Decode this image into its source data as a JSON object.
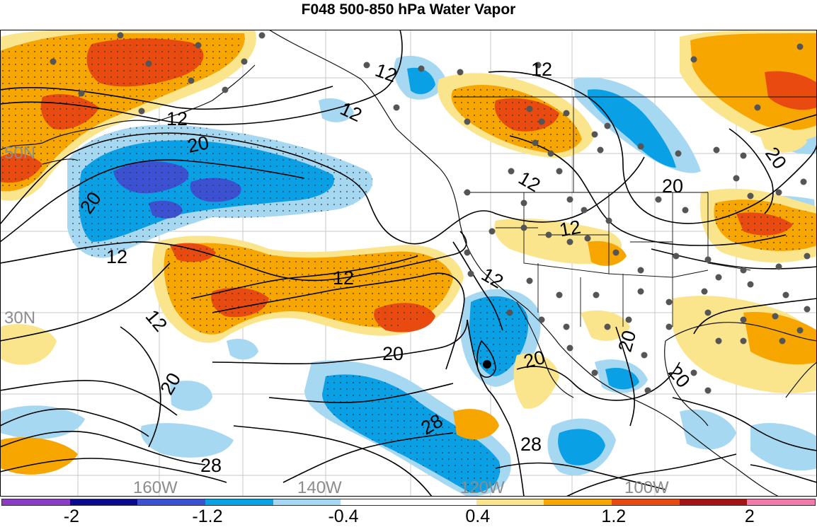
{
  "title": "F048 500-850 hPa Water Vapor",
  "colors": {
    "ocean": "#ffffff",
    "contour": "#000000",
    "station": "#555555",
    "graticule": "#c8c8c8"
  },
  "colorbar": {
    "colors": [
      "#8a3cc8",
      "#0a0a8c",
      "#3c50d2",
      "#0aa0e6",
      "#a6d8f2",
      "#ffffff",
      "#ffffff",
      "#fbe58c",
      "#f7a600",
      "#e84a10",
      "#a51414",
      "#f07aaa"
    ],
    "labels": [
      {
        "text": "-2",
        "pos": 0.086
      },
      {
        "text": "-1.2",
        "pos": 0.253
      },
      {
        "text": "-0.4",
        "pos": 0.42
      },
      {
        "text": "0.4",
        "pos": 0.585
      },
      {
        "text": "1.2",
        "pos": 0.752
      },
      {
        "text": "2",
        "pos": 0.919
      }
    ]
  },
  "longitude_labels": [
    "160W",
    "140W",
    "120W",
    "100W"
  ],
  "latitude_labels": [
    "50N",
    "30N"
  ],
  "contour_labels": [
    "12",
    "12",
    "12",
    "12",
    "12",
    "12",
    "12",
    "12",
    "12",
    "12",
    "20",
    "20",
    "20",
    "20",
    "20",
    "20",
    "20",
    "20",
    "20",
    "28",
    "28",
    "28"
  ]
}
